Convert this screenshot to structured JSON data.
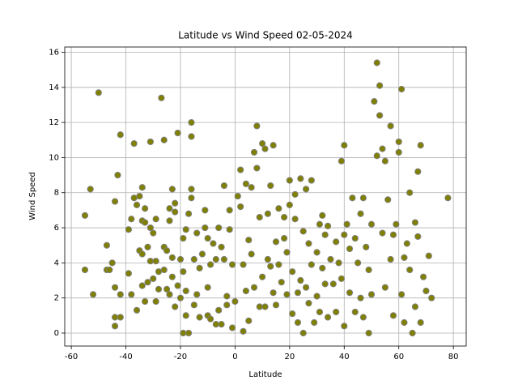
{
  "chart_data": {
    "type": "scatter",
    "title": "Latitude vs Wind Speed 02-05-2024",
    "x_label": "Latitude",
    "y_label": "Wind Speed",
    "color": "#808000",
    "edge_color": "#808080",
    "grid": true,
    "xlim": [
      -62.4,
      84.7
    ],
    "ylim": [
      -0.74,
      16.3
    ],
    "xticks": [
      -60,
      -40,
      -20,
      0,
      20,
      40,
      60,
      80
    ],
    "yticks": [
      0,
      2,
      4,
      6,
      8,
      10,
      12,
      14,
      16
    ],
    "x": [
      -55,
      -55,
      -53,
      -52,
      -50,
      -47,
      -47,
      -46,
      -45,
      -44,
      -44,
      -44,
      -44,
      -43,
      -42,
      -42,
      -42,
      -39,
      -39,
      -38,
      -38,
      -37,
      -37,
      -36,
      -36,
      -35,
      -35,
      -34,
      -34,
      -34,
      -34,
      -33,
      -33,
      -33,
      -32,
      -32,
      -31,
      -31,
      -31,
      -30,
      -30,
      -29,
      -29,
      -29,
      -28,
      -28,
      -27,
      -26,
      -26,
      -26,
      -25,
      -25,
      -24,
      -24,
      -24,
      -23,
      -23,
      -23,
      -22,
      -22,
      -22,
      -21,
      -21,
      -20,
      -20,
      -19,
      -19,
      -19,
      -18,
      -18,
      -18,
      -17,
      -17,
      -16,
      -16,
      -16,
      -16,
      -15,
      -15,
      -14,
      -14,
      -13,
      -13,
      -12,
      -11,
      -11,
      -10,
      -10,
      -10,
      -9,
      -9,
      -8,
      -7,
      -7,
      -6,
      -6,
      -5,
      -5,
      -4,
      -4,
      -3,
      -3,
      -2,
      -2,
      -1,
      -1,
      0,
      1,
      2,
      2,
      3,
      3,
      4,
      4,
      5,
      5,
      6,
      6,
      7,
      7,
      8,
      8,
      9,
      9,
      10,
      10,
      11,
      11,
      12,
      12,
      13,
      13,
      14,
      14,
      15,
      15,
      16,
      16,
      17,
      18,
      18,
      19,
      19,
      20,
      20,
      21,
      21,
      22,
      22,
      23,
      23,
      24,
      24,
      25,
      25,
      26,
      26,
      27,
      27,
      28,
      28,
      29,
      30,
      30,
      31,
      31,
      32,
      32,
      33,
      33,
      34,
      34,
      35,
      36,
      37,
      37,
      38,
      39,
      39,
      40,
      40,
      40,
      41,
      42,
      42,
      43,
      44,
      44,
      45,
      46,
      46,
      47,
      47,
      48,
      49,
      49,
      50,
      50,
      51,
      52,
      52,
      53,
      53,
      54,
      54,
      55,
      55,
      56,
      57,
      57,
      58,
      58,
      59,
      60,
      60,
      61,
      61,
      62,
      62,
      63,
      64,
      64,
      65,
      66,
      66,
      67,
      67,
      68,
      68,
      69,
      70,
      71,
      72,
      78
    ],
    "values": [
      6.7,
      3.6,
      8.2,
      2.2,
      13.7,
      5.0,
      3.6,
      3.6,
      4.0,
      2.6,
      7.5,
      0.9,
      0.4,
      9.0,
      11.3,
      0.9,
      2.2,
      5.9,
      3.4,
      6.5,
      2.2,
      10.8,
      7.7,
      7.3,
      1.3,
      4.7,
      7.8,
      8.3,
      6.4,
      2.7,
      4.5,
      7.1,
      6.3,
      1.8,
      4.9,
      2.9,
      10.9,
      4.1,
      6.0,
      5.7,
      3.1,
      4.1,
      6.5,
      1.8,
      3.5,
      2.5,
      13.4,
      11.0,
      4.9,
      3.6,
      2.5,
      4.7,
      6.4,
      7.1,
      2.2,
      8.2,
      4.3,
      3.2,
      6.9,
      7.4,
      1.5,
      11.4,
      2.7,
      4.2,
      2.0,
      0.0,
      5.4,
      3.5,
      1.0,
      5.9,
      2.4,
      0.0,
      6.8,
      11.2,
      7.7,
      12.0,
      8.2,
      4.2,
      1.6,
      5.7,
      2.2,
      3.7,
      0.9,
      4.5,
      7.0,
      6.0,
      5.4,
      2.6,
      1.0,
      0.8,
      3.9,
      5.1,
      4.2,
      0.5,
      6.0,
      1.3,
      4.9,
      0.5,
      8.4,
      4.2,
      2.1,
      1.6,
      5.9,
      7.0,
      3.9,
      0.3,
      1.8,
      7.8,
      9.3,
      7.2,
      0.1,
      3.9,
      2.4,
      8.5,
      5.3,
      0.7,
      8.3,
      4.5,
      10.3,
      2.6,
      9.4,
      11.8,
      6.6,
      1.5,
      10.8,
      3.2,
      10.5,
      1.5,
      6.8,
      4.2,
      3.8,
      8.4,
      10.7,
      2.3,
      5.2,
      1.6,
      7.1,
      3.9,
      2.9,
      5.4,
      6.6,
      4.6,
      2.2,
      8.7,
      7.3,
      3.5,
      1.1,
      6.5,
      7.9,
      0.6,
      2.3,
      8.8,
      3.0,
      0.0,
      5.8,
      8.2,
      2.6,
      5.1,
      1.7,
      8.7,
      3.9,
      0.6,
      4.6,
      2.1,
      6.2,
      1.2,
      6.7,
      3.7,
      5.6,
      2.8,
      6.1,
      0.9,
      4.2,
      2.8,
      5.2,
      1.2,
      4.0,
      9.8,
      3.1,
      10.7,
      5.6,
      0.4,
      6.2,
      2.3,
      4.8,
      7.7,
      1.2,
      5.4,
      4.0,
      6.8,
      2.0,
      7.7,
      0.9,
      4.9,
      3.6,
      0.0,
      6.2,
      2.2,
      13.2,
      15.4,
      10.1,
      14.1,
      12.4,
      10.5,
      5.7,
      9.8,
      2.6,
      7.6,
      11.8,
      4.2,
      5.6,
      1.0,
      6.2,
      10.9,
      10.3,
      13.9,
      2.2,
      4.3,
      0.6,
      5.1,
      8.0,
      3.6,
      0.0,
      6.3,
      1.5,
      9.2,
      5.5,
      10.7,
      0.6,
      3.2,
      2.4,
      4.4,
      2.0,
      7.7
    ]
  }
}
